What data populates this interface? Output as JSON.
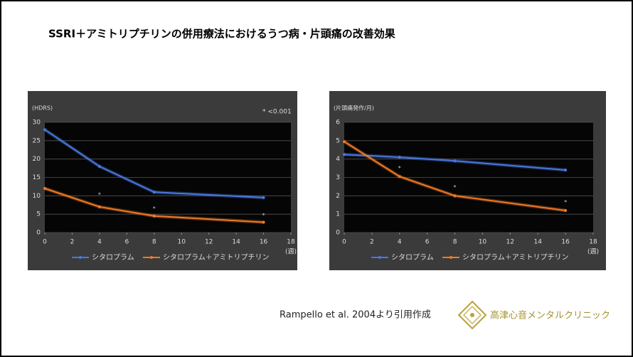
{
  "title": "SSRI＋アミトリプチリンの併用療法におけるうつ病・片頭痛の改善効果",
  "citation": "Rampello et al. 2004より引用作成",
  "logo_text": "高津心音メンタルクリニック",
  "chart_data": [
    {
      "type": "line",
      "y_label": "(HDRS)",
      "x_label": "(週)",
      "annotation": "* <0.001",
      "x": [
        0,
        4,
        8,
        16
      ],
      "xlim": [
        0,
        18
      ],
      "xticks": [
        0,
        2,
        4,
        6,
        8,
        10,
        12,
        14,
        16,
        18
      ],
      "ylim": [
        0,
        30
      ],
      "yticks": [
        0,
        5,
        10,
        15,
        20,
        25,
        30
      ],
      "grid": true,
      "series": [
        {
          "name": "シタロプラム",
          "color": "#4a78e0",
          "values": [
            28,
            18,
            11,
            9.5
          ]
        },
        {
          "name": "シタロプラム＋アミトリプチリン",
          "color": "#f07a24",
          "values": [
            12,
            7,
            4.5,
            2.8
          ]
        }
      ],
      "significance_marks": {
        "text": "*",
        "x": [
          4,
          8,
          16
        ],
        "y": [
          10.3,
          6.5,
          4.6
        ]
      }
    },
    {
      "type": "line",
      "y_label": "(片頭痛発作/月)",
      "x_label": "(週)",
      "x": [
        0,
        4,
        8,
        16
      ],
      "xlim": [
        0,
        18
      ],
      "xticks": [
        0,
        2,
        4,
        6,
        8,
        10,
        12,
        14,
        16,
        18
      ],
      "ylim": [
        0,
        6
      ],
      "yticks": [
        0,
        1,
        2,
        3,
        4,
        5,
        6
      ],
      "grid": true,
      "series": [
        {
          "name": "シタロプラム",
          "color": "#4a78e0",
          "values": [
            4.25,
            4.1,
            3.9,
            3.4
          ]
        },
        {
          "name": "シタロプラム＋アミトリプチリン",
          "color": "#f07a24",
          "values": [
            4.95,
            3.05,
            2.0,
            1.2
          ]
        }
      ],
      "significance_marks": {
        "text": "*",
        "x": [
          4,
          8,
          16
        ],
        "y": [
          3.5,
          2.45,
          1.65
        ]
      }
    }
  ]
}
